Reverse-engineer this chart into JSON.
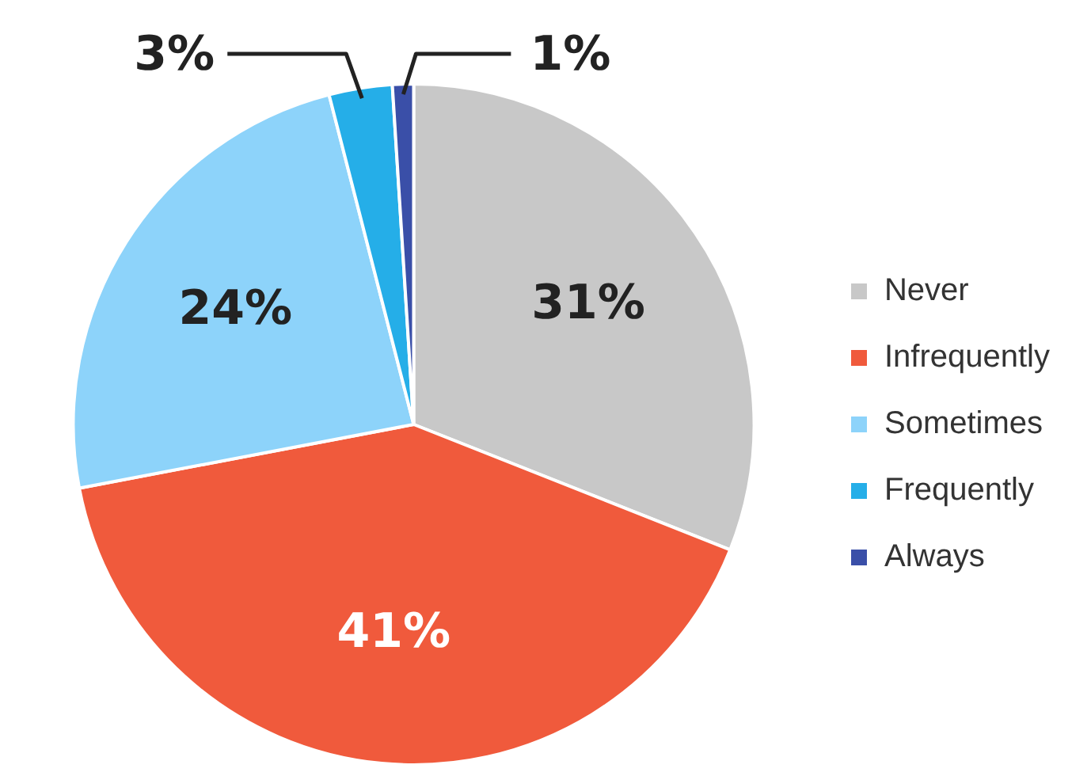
{
  "chart_data": {
    "type": "pie",
    "categories": [
      "Never",
      "Infrequently",
      "Sometimes",
      "Frequently",
      "Always"
    ],
    "values": [
      31,
      41,
      24,
      3,
      1
    ],
    "colors": [
      "#c8c8c8",
      "#f05a3c",
      "#8dd3fa",
      "#25aee8",
      "#3a4fa8"
    ],
    "value_labels": [
      "31%",
      "41%",
      "24%",
      "3%",
      "1%"
    ],
    "legend": "right"
  }
}
